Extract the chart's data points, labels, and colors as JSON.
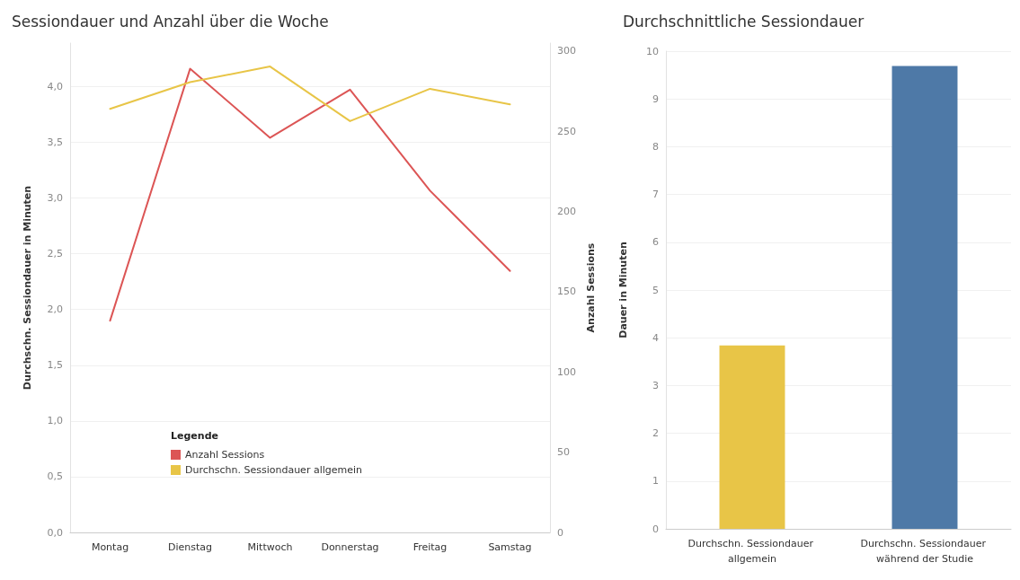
{
  "chart_data": [
    {
      "type": "line",
      "title": "Sessiondauer und Anzahl über die Woche",
      "ylabel": "Durchschn. Sessiondauer in Minuten",
      "y2label": "Anzahl Sessions",
      "legend_title": "Legende",
      "categories": [
        "Montag",
        "Dienstag",
        "Mittwoch",
        "Donnerstag",
        "Freitag",
        "Samstag"
      ],
      "series": [
        {
          "name": "Anzahl Sessions",
          "color": "#dc5555",
          "axis": "y2",
          "values": [
            132,
            289,
            246,
            276,
            213,
            163
          ]
        },
        {
          "name": "Durchschn. Sessiondauer allgemein",
          "color": "#e8c547",
          "values": [
            3.8,
            4.04,
            4.18,
            3.69,
            3.98,
            3.84
          ]
        }
      ],
      "ylim": [
        0,
        4.39
      ],
      "yticks": [
        {
          "value": 0,
          "label": "0,0"
        },
        {
          "value": 0.5,
          "label": "0,5"
        },
        {
          "value": 1,
          "label": "1,0"
        },
        {
          "value": 1.5,
          "label": "1,5"
        },
        {
          "value": 2,
          "label": "2,0"
        },
        {
          "value": 2.5,
          "label": "2,5"
        },
        {
          "value": 3,
          "label": "3,0"
        },
        {
          "value": 3.5,
          "label": "3,5"
        },
        {
          "value": 4,
          "label": "4,0"
        }
      ],
      "y2lim": [
        0,
        305
      ],
      "y2ticks": [
        0,
        50,
        100,
        150,
        200,
        250,
        300
      ],
      "grid": "y",
      "legend": "bottom left",
      "marker": "none",
      "line_style": "solid"
    },
    {
      "type": "bar",
      "title": "Durchschnittliche Sessiondauer",
      "ylabel": "Dauer in Minuten",
      "categories": [
        "Durchschn. Sessiondauer allgemein",
        "Durchschn. Sessiondauer während der Studie"
      ],
      "values": [
        3.84,
        9.69
      ],
      "colors": [
        "#e8c547",
        "#4e79a7"
      ],
      "ylim": [
        0,
        10
      ],
      "yticks": [
        0,
        1,
        2,
        3,
        4,
        5,
        6,
        7,
        8,
        9,
        10
      ],
      "grid": "y"
    }
  ]
}
